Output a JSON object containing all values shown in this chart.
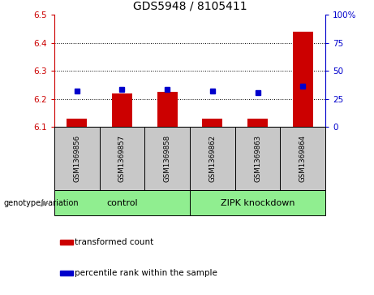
{
  "title": "GDS5948 / 8105411",
  "samples": [
    "GSM1369856",
    "GSM1369857",
    "GSM1369858",
    "GSM1369862",
    "GSM1369863",
    "GSM1369864"
  ],
  "red_bar_values": [
    6.13,
    6.22,
    6.225,
    6.13,
    6.13,
    6.44
  ],
  "blue_marker_values": [
    6.228,
    6.235,
    6.235,
    6.228,
    6.222,
    6.245
  ],
  "baseline": 6.1,
  "ylim_left": [
    6.1,
    6.5
  ],
  "ylim_right": [
    0,
    100
  ],
  "yticks_left": [
    6.1,
    6.2,
    6.3,
    6.4,
    6.5
  ],
  "yticks_right": [
    0,
    25,
    50,
    75,
    100
  ],
  "grid_values": [
    6.2,
    6.3,
    6.4
  ],
  "groups": [
    {
      "label": "control",
      "indices": [
        0,
        1,
        2
      ],
      "color": "#90EE90"
    },
    {
      "label": "ZIPK knockdown",
      "indices": [
        3,
        4,
        5
      ],
      "color": "#90EE90"
    }
  ],
  "group_label_prefix": "genotype/variation",
  "legend_items": [
    {
      "color": "#cc0000",
      "label": "transformed count"
    },
    {
      "color": "#0000cc",
      "label": "percentile rank within the sample"
    }
  ],
  "bar_color": "#cc0000",
  "marker_color": "#0000cc",
  "left_axis_color": "#cc0000",
  "right_axis_color": "#0000cc",
  "title_fontsize": 10,
  "tick_fontsize": 7.5,
  "sample_box_color": "#c8c8c8",
  "bar_width": 0.45
}
